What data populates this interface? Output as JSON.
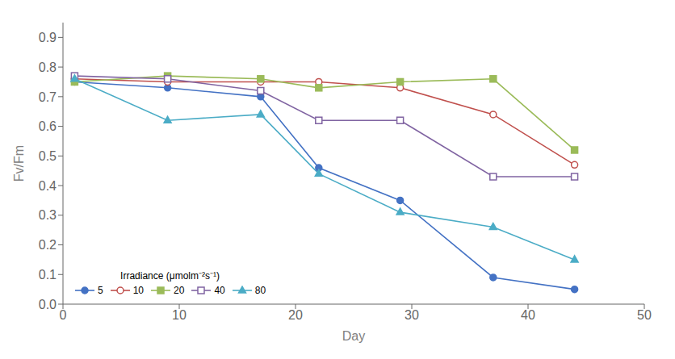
{
  "chart_data": {
    "type": "line",
    "x_label": "Day",
    "y_label": "Fv/Fm",
    "legend_title": "Irradiance (μmolm⁻²s⁻¹)",
    "legend": "lower left",
    "grid": false,
    "xlim": [
      0,
      50
    ],
    "xticks": [
      0,
      10,
      20,
      30,
      40,
      50
    ],
    "ylim": [
      0.0,
      0.95
    ],
    "yticks": [
      {
        "value": 0.0,
        "label": "0.0"
      },
      0.1,
      0.2,
      0.3,
      0.4,
      0.5,
      0.6,
      0.7,
      0.8,
      0.9
    ],
    "series": [
      {
        "name": "5",
        "color": "#4472C4",
        "marker": "circle",
        "x": [
          1,
          9,
          17,
          22,
          29,
          37,
          44
        ],
        "values": [
          0.75,
          0.73,
          0.7,
          0.46,
          0.35,
          0.09,
          0.05
        ]
      },
      {
        "name": "10",
        "color": "#C0504D",
        "marker": "circle-open",
        "x": [
          1,
          9,
          17,
          22,
          29,
          37,
          44
        ],
        "values": [
          0.76,
          0.75,
          0.75,
          0.75,
          0.73,
          0.64,
          0.47
        ]
      },
      {
        "name": "20",
        "color": "#9BBB59",
        "marker": "square",
        "x": [
          1,
          9,
          17,
          22,
          29,
          37,
          44
        ],
        "values": [
          0.75,
          0.77,
          0.76,
          0.73,
          0.75,
          0.76,
          0.52
        ]
      },
      {
        "name": "40",
        "color": "#8064A2",
        "marker": "square-open",
        "x": [
          1,
          9,
          17,
          22,
          29,
          37,
          44
        ],
        "values": [
          0.77,
          0.76,
          0.72,
          0.62,
          0.62,
          0.43,
          0.43
        ]
      },
      {
        "name": "80",
        "color": "#4BACC6",
        "marker": "triangle",
        "x": [
          1,
          9,
          17,
          22,
          29,
          37,
          44
        ],
        "values": [
          0.76,
          0.62,
          0.64,
          0.44,
          0.31,
          0.26,
          0.15
        ]
      }
    ]
  }
}
